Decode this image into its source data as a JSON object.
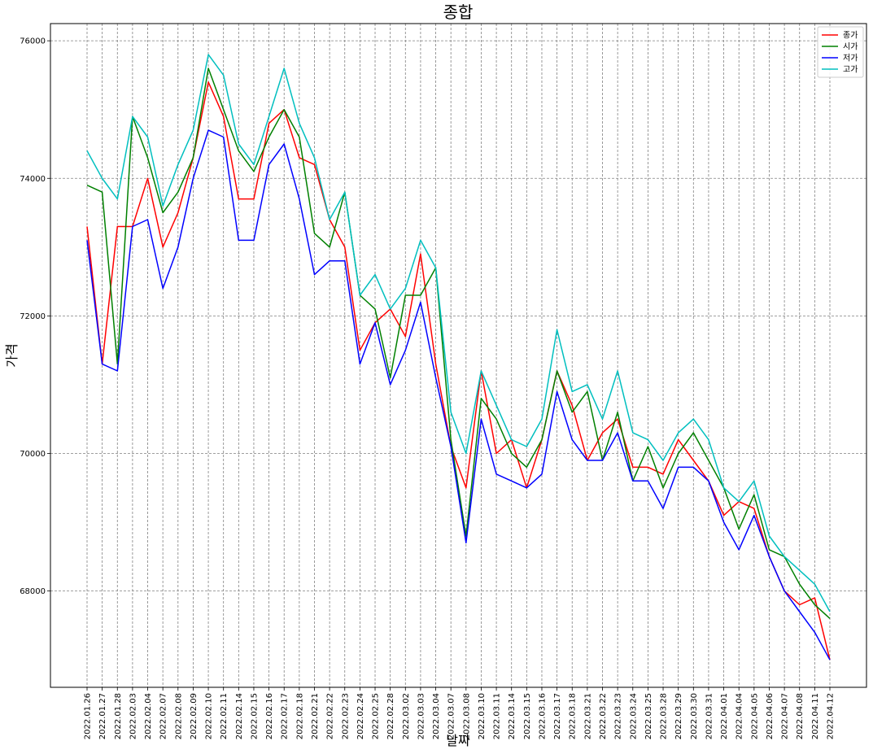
{
  "chart_data": {
    "type": "line",
    "title": "종합",
    "xlabel": "날짜",
    "ylabel": "가격",
    "ylim": [
      66600,
      76250
    ],
    "yticks": [
      68000,
      70000,
      72000,
      74000,
      76000
    ],
    "grid": true,
    "legend_position": "top-right",
    "categories": [
      "2022.01.26",
      "2022.01.27",
      "2022.01.28",
      "2022.02.03",
      "2022.02.04",
      "2022.02.07",
      "2022.02.08",
      "2022.02.09",
      "2022.02.10",
      "2022.02.11",
      "2022.02.14",
      "2022.02.15",
      "2022.02.16",
      "2022.02.17",
      "2022.02.18",
      "2022.02.21",
      "2022.02.22",
      "2022.02.23",
      "2022.02.24",
      "2022.02.25",
      "2022.02.28",
      "2022.03.02",
      "2022.03.03",
      "2022.03.04",
      "2022.03.07",
      "2022.03.08",
      "2022.03.10",
      "2022.03.11",
      "2022.03.14",
      "2022.03.15",
      "2022.03.16",
      "2022.03.17",
      "2022.03.18",
      "2022.03.21",
      "2022.03.22",
      "2022.03.23",
      "2022.03.24",
      "2022.03.25",
      "2022.03.28",
      "2022.03.29",
      "2022.03.30",
      "2022.03.31",
      "2022.04.01",
      "2022.04.04",
      "2022.04.05",
      "2022.04.06",
      "2022.04.07",
      "2022.04.08",
      "2022.04.11",
      "2022.04.12"
    ],
    "series": [
      {
        "name": "종가",
        "color": "#ff0000",
        "values": [
          73300,
          71300,
          73300,
          73300,
          74000,
          73000,
          73500,
          74300,
          75400,
          74900,
          73700,
          73700,
          74800,
          75000,
          74300,
          74200,
          73400,
          73000,
          71500,
          71900,
          72100,
          71700,
          72900,
          71300,
          70100,
          69500,
          71200,
          70000,
          70200,
          69500,
          70200,
          71200,
          70700,
          69900,
          70300,
          70500,
          69800,
          69800,
          69700,
          70200,
          69900,
          69600,
          69100,
          69300,
          69200,
          68500,
          68000,
          67800,
          67900,
          67000
        ]
      },
      {
        "name": "시가",
        "color": "#008000",
        "values": [
          73900,
          73800,
          71300,
          74900,
          74300,
          73500,
          73800,
          74300,
          75600,
          75000,
          74400,
          74100,
          74600,
          75000,
          74600,
          73200,
          73000,
          73800,
          72300,
          72100,
          71100,
          72300,
          72300,
          72700,
          70200,
          68800,
          70800,
          70500,
          70000,
          69800,
          70200,
          71200,
          70600,
          70900,
          69900,
          70600,
          69600,
          70100,
          69500,
          70000,
          70300,
          69900,
          69500,
          68900,
          69400,
          68600,
          68500,
          68100,
          67800,
          67600
        ]
      },
      {
        "name": "저가",
        "color": "#0000ff",
        "values": [
          73100,
          71300,
          71200,
          73300,
          73400,
          72400,
          73000,
          74000,
          74700,
          74600,
          73100,
          73100,
          74200,
          74500,
          73700,
          72600,
          72800,
          72800,
          71300,
          71900,
          71000,
          71500,
          72200,
          71100,
          70100,
          68700,
          70500,
          69700,
          69600,
          69500,
          69700,
          70900,
          70200,
          69900,
          69900,
          70300,
          69600,
          69600,
          69200,
          69800,
          69800,
          69600,
          69000,
          68600,
          69100,
          68500,
          68000,
          67700,
          67400,
          67000
        ]
      },
      {
        "name": "고가",
        "color": "#00bfbf",
        "values": [
          74400,
          74000,
          73700,
          74900,
          74600,
          73600,
          74200,
          74700,
          75800,
          75500,
          74500,
          74200,
          74900,
          75600,
          74800,
          74300,
          73400,
          73800,
          72300,
          72600,
          72100,
          72400,
          73100,
          72700,
          70600,
          70000,
          71200,
          70700,
          70200,
          70100,
          70500,
          71800,
          70900,
          71000,
          70500,
          71200,
          70300,
          70200,
          69900,
          70300,
          70500,
          70200,
          69500,
          69300,
          69600,
          68800,
          68500,
          68300,
          68100,
          67700
        ]
      }
    ]
  }
}
